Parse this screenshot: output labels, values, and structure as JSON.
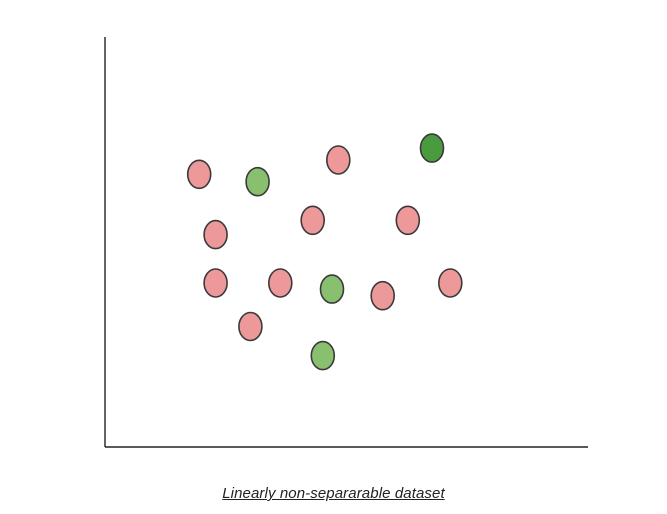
{
  "chart_data": {
    "type": "scatter",
    "title": "",
    "xlabel": "",
    "ylabel": "",
    "xlim": [
      0,
      100
    ],
    "ylim": [
      0,
      100
    ],
    "grid": false,
    "axis_ticks": false,
    "series": [
      {
        "color": "#ee9999",
        "points": [
          {
            "x": 19.5,
            "y": 66.5
          },
          {
            "x": 48.3,
            "y": 70.0
          },
          {
            "x": 22.9,
            "y": 51.8
          },
          {
            "x": 43.0,
            "y": 55.3
          },
          {
            "x": 62.7,
            "y": 55.3
          },
          {
            "x": 22.9,
            "y": 40.0
          },
          {
            "x": 36.3,
            "y": 40.0
          },
          {
            "x": 57.5,
            "y": 36.9
          },
          {
            "x": 71.5,
            "y": 40.0
          },
          {
            "x": 30.1,
            "y": 29.4
          }
        ]
      },
      {
        "color": "#88c070",
        "points": [
          {
            "x": 31.6,
            "y": 64.7
          },
          {
            "x": 47.0,
            "y": 38.5
          },
          {
            "x": 45.1,
            "y": 22.3
          }
        ]
      },
      {
        "color": "#4a9a3f",
        "points": [
          {
            "x": 67.7,
            "y": 72.9
          }
        ]
      }
    ]
  },
  "caption": "Linearly non-separarable dataset",
  "colors": {
    "axis": "#222222",
    "marker_stroke": "#3a3a3a"
  }
}
